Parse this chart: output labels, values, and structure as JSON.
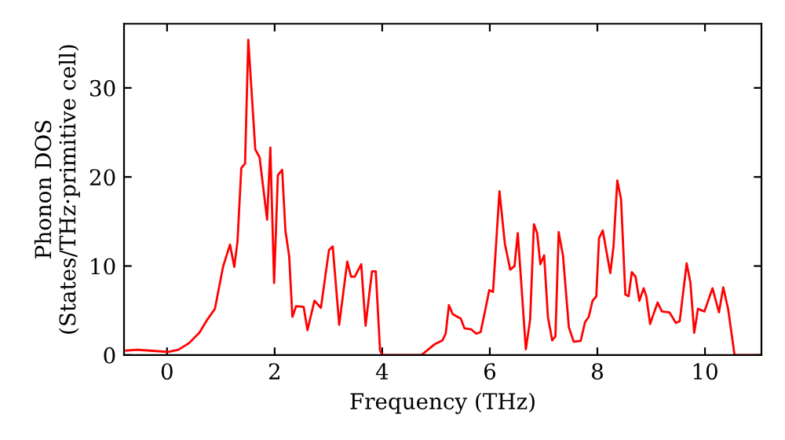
{
  "chart_data": {
    "type": "line",
    "xlabel": "Frequency (THz)",
    "ylabel": "Phonon DOS\n(States/THz·primitive cell)",
    "x": [
      -0.76,
      -0.56,
      -0.32,
      0.02,
      0.21,
      0.41,
      0.6,
      0.75,
      0.89,
      1.04,
      1.17,
      1.25,
      1.31,
      1.38,
      1.45,
      1.51,
      1.64,
      1.72,
      1.86,
      1.92,
      1.99,
      2.06,
      2.14,
      2.2,
      2.27,
      2.33,
      2.4,
      2.54,
      2.61,
      2.74,
      2.86,
      3.01,
      3.08,
      3.2,
      3.35,
      3.42,
      3.49,
      3.61,
      3.69,
      3.81,
      3.88,
      3.96,
      4.0,
      4.73,
      4.97,
      5.12,
      5.18,
      5.24,
      5.31,
      5.46,
      5.53,
      5.65,
      5.75,
      5.83,
      5.92,
      5.99,
      6.06,
      6.18,
      6.28,
      6.38,
      6.46,
      6.52,
      6.67,
      6.75,
      6.82,
      6.88,
      6.94,
      7.01,
      7.08,
      7.16,
      7.22,
      7.28,
      7.36,
      7.47,
      7.56,
      7.69,
      7.77,
      7.84,
      7.91,
      7.98,
      8.03,
      8.1,
      8.24,
      8.3,
      8.37,
      8.44,
      8.52,
      8.58,
      8.64,
      8.71,
      8.78,
      8.86,
      8.91,
      8.98,
      9.05,
      9.12,
      9.2,
      9.34,
      9.46,
      9.53,
      9.66,
      9.73,
      9.8,
      9.87,
      9.99,
      10.14,
      10.26,
      10.34,
      10.43,
      10.55,
      11.04
    ],
    "series": [
      {
        "color": "#ff0000",
        "values": [
          0.5,
          0.6,
          0.5,
          0.35,
          0.6,
          1.35,
          2.5,
          4.0,
          5.2,
          9.9,
          12.4,
          9.9,
          12.8,
          21.0,
          21.5,
          35.4,
          23.1,
          22.2,
          15.2,
          23.3,
          8.1,
          20.2,
          20.8,
          14.0,
          11.1,
          4.3,
          5.5,
          5.4,
          2.8,
          6.1,
          5.3,
          11.8,
          12.2,
          3.4,
          10.5,
          8.8,
          8.8,
          10.2,
          3.3,
          9.4,
          9.4,
          0.5,
          0,
          0,
          1.2,
          1.65,
          2.4,
          5.6,
          4.6,
          4.1,
          3.0,
          2.9,
          2.4,
          2.6,
          5.2,
          7.3,
          7.1,
          18.4,
          12.5,
          9.6,
          10.0,
          13.7,
          0.65,
          4.0,
          14.7,
          13.7,
          10.2,
          11.2,
          4.3,
          1.65,
          2.1,
          13.8,
          11.2,
          3.1,
          1.5,
          1.6,
          3.7,
          4.3,
          6.1,
          6.6,
          13.1,
          14.0,
          9.2,
          12.2,
          19.6,
          17.5,
          6.8,
          6.6,
          9.3,
          8.8,
          6.1,
          7.5,
          6.6,
          3.5,
          4.7,
          5.9,
          4.9,
          4.8,
          3.6,
          3.8,
          10.3,
          8.1,
          2.5,
          5.2,
          4.9,
          7.5,
          4.8,
          7.6,
          5.2,
          0,
          0
        ]
      }
    ],
    "xlim": [
      -0.8,
      11.05
    ],
    "ylim": [
      0,
      37.2
    ],
    "xticks": [
      0,
      2,
      4,
      6,
      8,
      10
    ],
    "yticks": [
      0,
      10,
      20,
      30
    ],
    "grid": false,
    "legend": false,
    "line_style": "solid",
    "marker": "none"
  }
}
